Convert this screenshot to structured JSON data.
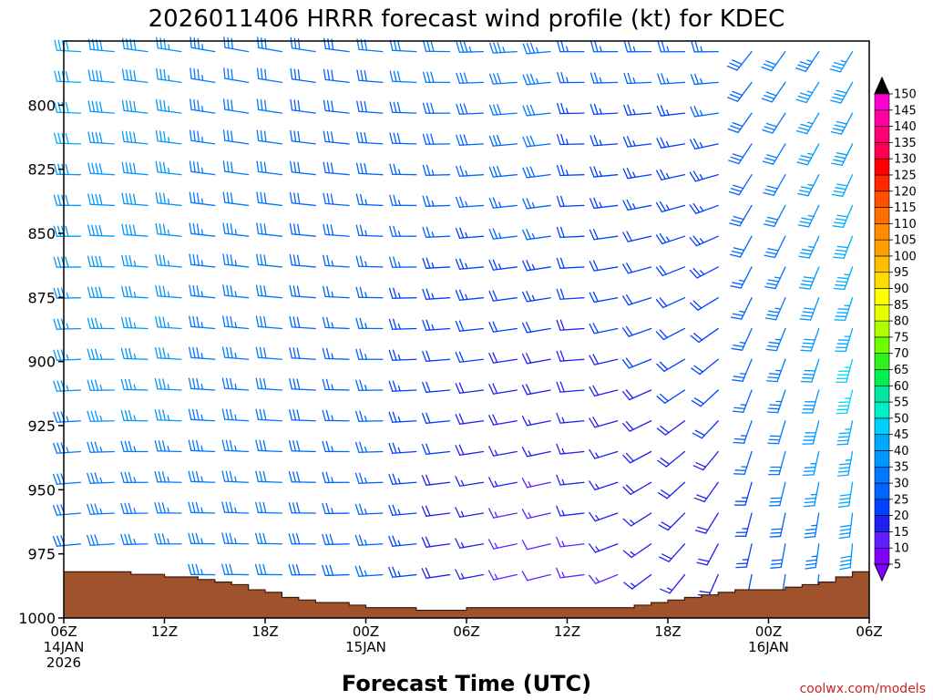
{
  "chart_data": {
    "type": "wind-barb-profile",
    "title": "2026011406 HRRR forecast wind profile (kt) for KDEC",
    "xlabel": "Forecast Time (UTC)",
    "ylabel": "",
    "credit": "coolwx.com/models",
    "units": "kt",
    "ylim": [
      1000,
      775
    ],
    "y_ticks": [
      800,
      825,
      850,
      875,
      900,
      925,
      950,
      975,
      1000
    ],
    "x_hours_range": [
      0,
      48
    ],
    "x_ticks": [
      {
        "hour": 0,
        "lines": [
          "06Z",
          "14JAN",
          "2026"
        ]
      },
      {
        "hour": 6,
        "lines": [
          "12Z"
        ]
      },
      {
        "hour": 12,
        "lines": [
          "18Z"
        ]
      },
      {
        "hour": 18,
        "lines": [
          "00Z",
          "15JAN"
        ]
      },
      {
        "hour": 24,
        "lines": [
          "06Z"
        ]
      },
      {
        "hour": 30,
        "lines": [
          "12Z"
        ]
      },
      {
        "hour": 36,
        "lines": [
          "18Z"
        ]
      },
      {
        "hour": 42,
        "lines": [
          "00Z",
          "16JAN"
        ]
      },
      {
        "hour": 48,
        "lines": [
          "06Z"
        ]
      }
    ],
    "barb_times": [
      1,
      3,
      5,
      7,
      9,
      11,
      13,
      15,
      17,
      19,
      21,
      23,
      25,
      27,
      29,
      31,
      33,
      35,
      37,
      39,
      41,
      43,
      45,
      47
    ],
    "barb_levels": [
      777,
      789,
      801,
      813,
      825,
      837,
      849,
      861,
      873,
      885,
      897,
      909,
      921,
      933,
      945,
      957,
      969,
      981
    ],
    "surface_pressure": [
      {
        "t0": 0,
        "t1": 2,
        "p": 982
      },
      {
        "t0": 2,
        "t1": 4,
        "p": 982
      },
      {
        "t0": 4,
        "t1": 6,
        "p": 983
      },
      {
        "t0": 6,
        "t1": 8,
        "p": 984
      },
      {
        "t0": 8,
        "t1": 9,
        "p": 985
      },
      {
        "t0": 9,
        "t1": 10,
        "p": 986
      },
      {
        "t0": 10,
        "t1": 11,
        "p": 987
      },
      {
        "t0": 11,
        "t1": 12,
        "p": 989
      },
      {
        "t0": 12,
        "t1": 13,
        "p": 990
      },
      {
        "t0": 13,
        "t1": 14,
        "p": 992
      },
      {
        "t0": 14,
        "t1": 15,
        "p": 993
      },
      {
        "t0": 15,
        "t1": 17,
        "p": 994
      },
      {
        "t0": 17,
        "t1": 18,
        "p": 995
      },
      {
        "t0": 18,
        "t1": 21,
        "p": 996
      },
      {
        "t0": 21,
        "t1": 24,
        "p": 997
      },
      {
        "t0": 24,
        "t1": 34,
        "p": 996
      },
      {
        "t0": 34,
        "t1": 35,
        "p": 995
      },
      {
        "t0": 35,
        "t1": 36,
        "p": 994
      },
      {
        "t0": 36,
        "t1": 37,
        "p": 993
      },
      {
        "t0": 37,
        "t1": 38,
        "p": 992
      },
      {
        "t0": 38,
        "t1": 39,
        "p": 991
      },
      {
        "t0": 39,
        "t1": 40,
        "p": 990
      },
      {
        "t0": 40,
        "t1": 43,
        "p": 989
      },
      {
        "t0": 43,
        "t1": 44,
        "p": 988
      },
      {
        "t0": 44,
        "t1": 45,
        "p": 987
      },
      {
        "t0": 45,
        "t1": 46,
        "p": 986
      },
      {
        "t0": 46,
        "t1": 47,
        "p": 984
      },
      {
        "t0": 47,
        "t1": 48,
        "p": 982
      }
    ],
    "colorbar": {
      "levels": [
        5,
        10,
        15,
        20,
        25,
        30,
        35,
        40,
        45,
        50,
        55,
        60,
        65,
        70,
        75,
        80,
        85,
        90,
        95,
        100,
        105,
        110,
        115,
        120,
        125,
        130,
        135,
        140,
        145,
        150
      ],
      "colors": [
        "#8000ff",
        "#6020ff",
        "#2020f0",
        "#0040ff",
        "#0064ff",
        "#0078ff",
        "#0096ff",
        "#00aaff",
        "#00d2ff",
        "#00f0c8",
        "#00e6a0",
        "#00f050",
        "#30f020",
        "#70ff00",
        "#b0ff00",
        "#e6ff00",
        "#ffff00",
        "#ffdc00",
        "#ffbe00",
        "#ffa000",
        "#ff8c00",
        "#ff7000",
        "#ff5000",
        "#ff2800",
        "#ff0000",
        "#ff0050",
        "#ff0078",
        "#ff00a0",
        "#ff00d0",
        "#ff00ff"
      ],
      "below_color": "#8000ff",
      "above_color": "#000000"
    },
    "colors": {
      "ground": "#a0522d",
      "ground_edge": "#3a1a0a"
    }
  }
}
